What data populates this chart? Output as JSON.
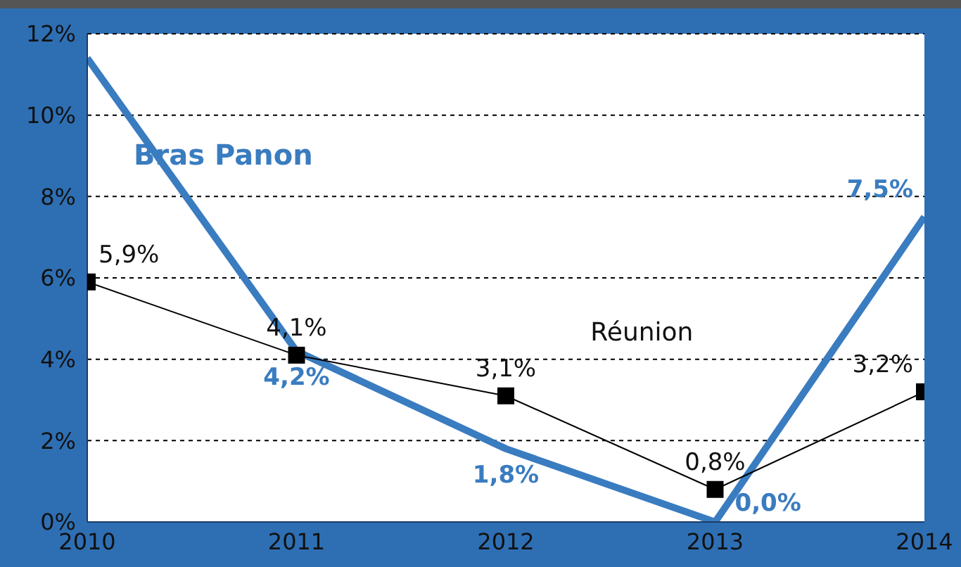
{
  "chart_data": {
    "type": "line",
    "x": [
      2010,
      2011,
      2012,
      2013,
      2014
    ],
    "xlim": [
      2010,
      2014
    ],
    "xticks": [
      2010,
      2011,
      2012,
      2013,
      2014
    ],
    "ylim": [
      0,
      12
    ],
    "yticks": [
      {
        "value": 0,
        "label": "0%"
      },
      {
        "value": 2,
        "label": "2%"
      },
      {
        "value": 4,
        "label": "4%"
      },
      {
        "value": 6,
        "label": "6%"
      },
      {
        "value": 8,
        "label": "8%"
      },
      {
        "value": 10,
        "label": "10%"
      },
      {
        "value": 12,
        "label": "12%"
      }
    ],
    "grid": "y",
    "legend": false,
    "series": [
      {
        "name": "Bras Panon",
        "color": "#3a7cc0",
        "values": [
          11.4,
          4.2,
          1.8,
          0.0,
          7.5
        ],
        "value_labels": [
          null,
          "4,2%",
          "1,8%",
          "0,0%",
          "7,5%"
        ],
        "marker": "none",
        "line_style": "solid"
      },
      {
        "name": "Réunion",
        "color": "#000000",
        "values": [
          5.9,
          4.1,
          3.1,
          0.8,
          3.2
        ],
        "value_labels": [
          "5,9%",
          "4,1%",
          "3,1%",
          "0,8%",
          "3,2%"
        ],
        "marker": "square",
        "line_style": "solid"
      }
    ]
  }
}
